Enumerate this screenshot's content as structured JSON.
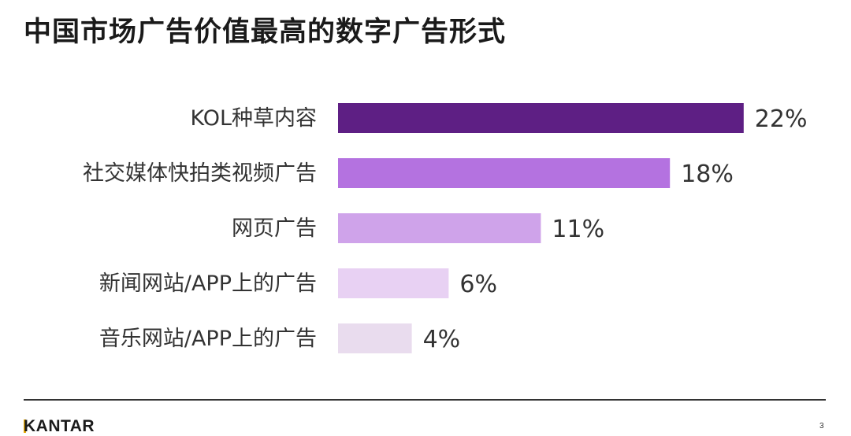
{
  "title": "中国市场广告价值最高的数字广告形式",
  "chart_data": {
    "type": "bar",
    "orientation": "horizontal",
    "categories": [
      "KOL种草内容",
      "社交媒体快拍类视频广告",
      "网页广告",
      "新闻网站/APP上的广告",
      "音乐网站/APP上的广告"
    ],
    "values": [
      22,
      18,
      11,
      6,
      4
    ],
    "value_labels": [
      "22%",
      "18%",
      "11%",
      "6%",
      "4%"
    ],
    "colors": [
      "#5e1f84",
      "#b472e0",
      "#cfa3ea",
      "#e8d1f3",
      "#e9dcee"
    ],
    "title": "中国市场广告价值最高的数字广告形式",
    "xlabel": "",
    "ylabel": "",
    "grid": false,
    "legend": "none"
  },
  "footer": {
    "logo_text": "KANTAR",
    "logo_accent_color": "#e8a800",
    "page_number": "3"
  }
}
